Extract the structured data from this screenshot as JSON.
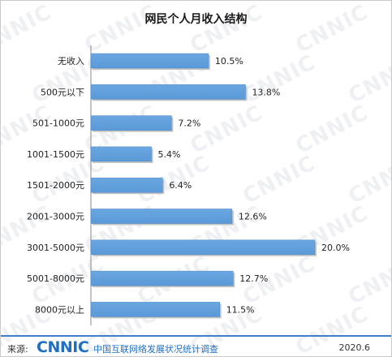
{
  "chart_data": {
    "type": "bar",
    "orientation": "horizontal",
    "title": "网民个人月收入结构",
    "categories": [
      "无收入",
      "500元以下",
      "501-1000元",
      "1001-1500元",
      "1501-2000元",
      "2001-3000元",
      "3001-5000元",
      "5001-8000元",
      "8000元以上"
    ],
    "values": [
      10.5,
      13.8,
      7.2,
      5.4,
      6.4,
      12.6,
      20.0,
      12.7,
      11.5
    ],
    "value_labels": [
      "10.5%",
      "13.8%",
      "7.2%",
      "5.4%",
      "6.4%",
      "12.6%",
      "20.0%",
      "12.7%",
      "11.5%"
    ],
    "unit": "%",
    "xlim": [
      0,
      20
    ],
    "grid": false,
    "bar_color": "#5a9ad8"
  },
  "watermark_text": "CNNIC",
  "footer": {
    "source_label": "来源:",
    "logo_text": "CNNIC",
    "org_name": "中国互联网络发展状况统计调查",
    "date": "2020.6"
  },
  "colors": {
    "accent": "#1f6fc4",
    "rule": "#3d80c9"
  }
}
